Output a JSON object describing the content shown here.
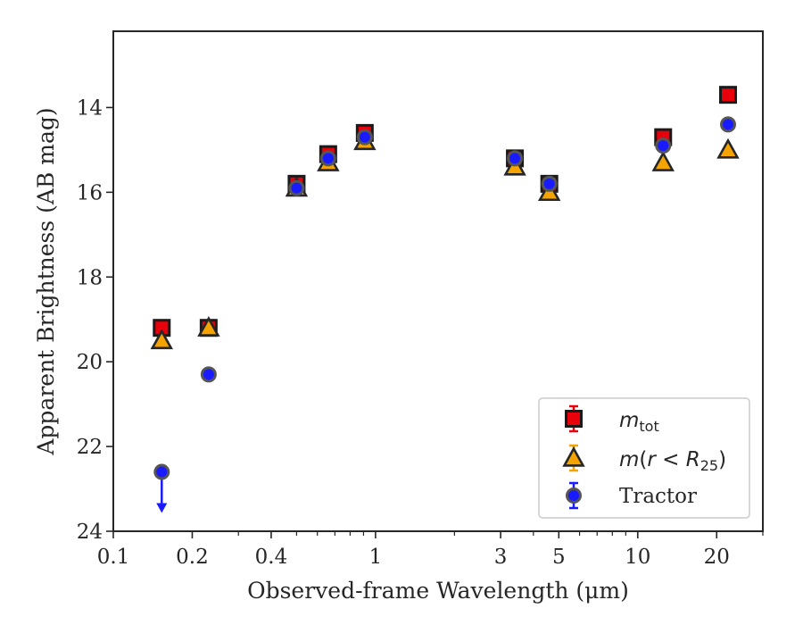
{
  "chart_data": {
    "type": "scatter",
    "xlabel": "Observed-frame Wavelength (μm)",
    "ylabel": "Apparent Brightness (AB mag)",
    "xscale": "log",
    "xlim": [
      0.1,
      30
    ],
    "ylim": [
      24,
      12.2
    ],
    "y_inverted": true,
    "x_ticks": [
      {
        "value": 0.1,
        "label": "0.1"
      },
      {
        "value": 0.2,
        "label": "0.2"
      },
      {
        "value": 0.4,
        "label": "0.4"
      },
      {
        "value": 1,
        "label": "1"
      },
      {
        "value": 3,
        "label": "3"
      },
      {
        "value": 5,
        "label": "5"
      },
      {
        "value": 10,
        "label": "10"
      },
      {
        "value": 20,
        "label": "20"
      }
    ],
    "y_ticks": [
      {
        "value": 14,
        "label": "14"
      },
      {
        "value": 16,
        "label": "16"
      },
      {
        "value": 18,
        "label": "18"
      },
      {
        "value": 20,
        "label": "20"
      },
      {
        "value": 22,
        "label": "22"
      },
      {
        "value": 24,
        "label": "24"
      }
    ],
    "grid": false,
    "legend_position": "lower right",
    "series": [
      {
        "name": "m_tot",
        "marker": "square",
        "color": "#e8000b",
        "points": [
          {
            "x": 0.153,
            "y": 19.2
          },
          {
            "x": 0.231,
            "y": 19.2
          },
          {
            "x": 0.5,
            "y": 15.8
          },
          {
            "x": 0.66,
            "y": 15.1
          },
          {
            "x": 0.91,
            "y": 14.6
          },
          {
            "x": 3.4,
            "y": 15.2
          },
          {
            "x": 4.6,
            "y": 15.8
          },
          {
            "x": 12.5,
            "y": 14.7
          },
          {
            "x": 22.1,
            "y": 13.7
          }
        ]
      },
      {
        "name": "m(r<R25)",
        "marker": "triangle",
        "color": "#f5a300",
        "points": [
          {
            "x": 0.153,
            "y": 19.5
          },
          {
            "x": 0.231,
            "y": 19.2
          },
          {
            "x": 0.5,
            "y": 15.9
          },
          {
            "x": 0.66,
            "y": 15.3
          },
          {
            "x": 0.91,
            "y": 14.8
          },
          {
            "x": 3.4,
            "y": 15.4
          },
          {
            "x": 4.6,
            "y": 16.0
          },
          {
            "x": 12.5,
            "y": 15.3
          },
          {
            "x": 22.1,
            "y": 15.0
          }
        ]
      },
      {
        "name": "Tractor",
        "marker": "circle",
        "color": "#1a1aff",
        "points": [
          {
            "x": 0.153,
            "y": 22.6,
            "upper_limit": true
          },
          {
            "x": 0.231,
            "y": 20.3
          },
          {
            "x": 0.5,
            "y": 15.9
          },
          {
            "x": 0.66,
            "y": 15.2
          },
          {
            "x": 0.91,
            "y": 14.7
          },
          {
            "x": 3.4,
            "y": 15.2
          },
          {
            "x": 4.6,
            "y": 15.8
          },
          {
            "x": 12.5,
            "y": 14.9
          },
          {
            "x": 22.1,
            "y": 14.4
          }
        ]
      }
    ]
  }
}
